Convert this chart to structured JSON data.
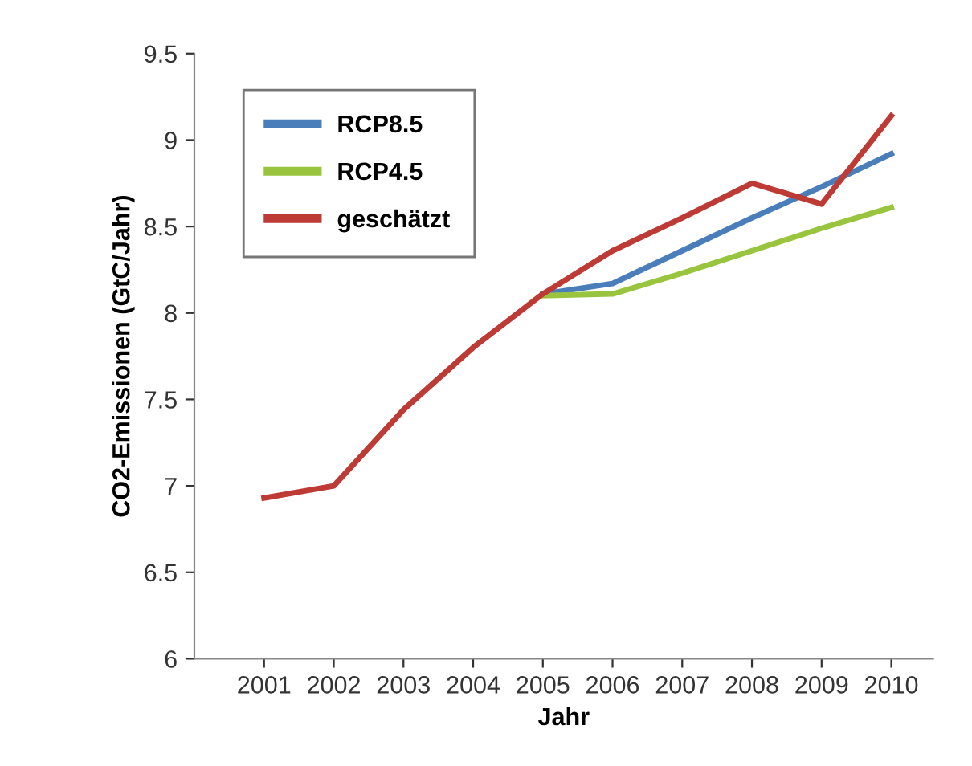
{
  "chart_data": {
    "type": "line",
    "xlabel": "Jahr",
    "ylabel": "CO2-Emissionen (GtC/Jahr)",
    "categories": [
      "2001",
      "2002",
      "2003",
      "2004",
      "2005",
      "2006",
      "2007",
      "2008",
      "2009",
      "2010"
    ],
    "series": [
      {
        "name": "RCP8.5",
        "color": "#4a7ebb",
        "values": [
          null,
          null,
          null,
          null,
          8.11,
          8.17,
          8.36,
          8.55,
          8.73,
          8.92
        ]
      },
      {
        "name": "RCP4.5",
        "color": "#98c53d",
        "values": [
          null,
          null,
          null,
          null,
          8.1,
          8.11,
          8.23,
          8.36,
          8.49,
          8.61
        ]
      },
      {
        "name": "geschätzt",
        "color": "#be3a34",
        "values": [
          6.93,
          7.0,
          7.44,
          7.8,
          8.11,
          8.36,
          8.55,
          8.75,
          8.63,
          9.14
        ]
      }
    ],
    "ylim": [
      6,
      9.5
    ],
    "yticks": [
      6,
      6.5,
      7,
      7.5,
      8,
      8.5,
      9,
      9.5
    ],
    "grid": false,
    "legend": "top left",
    "marker": "none",
    "line_style": "solid"
  }
}
